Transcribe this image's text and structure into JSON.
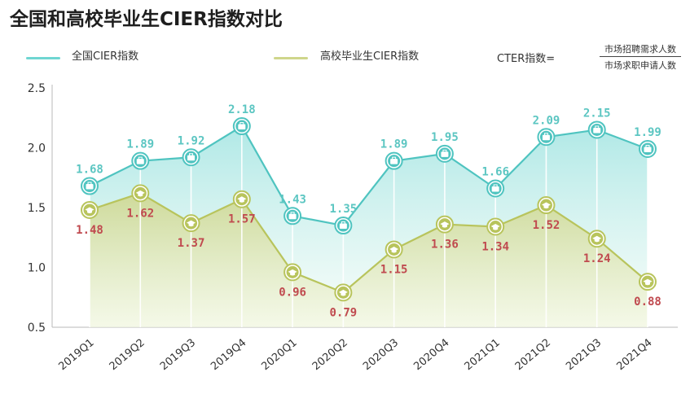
{
  "colors": {
    "national": "#6fd6d2",
    "national_dark": "#4fc4c0",
    "national_label": "#5cc6c2",
    "college": "#cfd68b",
    "college_dark": "#b8c45c",
    "college_label": "#c04a4f"
  },
  "icons": {
    "national_marker": "briefcase-icon",
    "college_marker": "graduation-cap-icon"
  },
  "title": "全国和高校毕业生CIER指数对比",
  "legend": {
    "national": "全国CIER指数",
    "college": "高校毕业生CIER指数"
  },
  "formula": {
    "lhs": "CTER指数=",
    "numerator": "市场招聘需求人数",
    "denominator": "市场求职申请人数"
  },
  "chart_data": {
    "type": "line",
    "title": "全国和高校毕业生CIER指数对比",
    "xlabel": "",
    "ylabel": "",
    "ylim": [
      0.5,
      2.5
    ],
    "yticks": [
      "0.5",
      "1.0",
      "1.5",
      "2.0",
      "2.5"
    ],
    "categories": [
      "2019Q1",
      "2019Q2",
      "2019Q3",
      "2019Q4",
      "2020Q1",
      "2020Q2",
      "2020Q3",
      "2020Q4",
      "2021Q1",
      "2021Q2",
      "2021Q3",
      "2021Q4"
    ],
    "series": [
      {
        "name": "全国CIER指数",
        "values": [
          1.68,
          1.89,
          1.92,
          2.18,
          1.43,
          1.35,
          1.89,
          1.95,
          1.66,
          2.09,
          2.15,
          1.99
        ],
        "labels": [
          "1.68",
          "1.89",
          "1.92",
          "2.18",
          "1.43",
          "1.35",
          "1.89",
          "1.95",
          "1.66",
          "2.09",
          "2.15",
          "1.99"
        ]
      },
      {
        "name": "高校毕业生CIER指数",
        "values": [
          1.48,
          1.62,
          1.37,
          1.57,
          0.96,
          0.79,
          1.15,
          1.36,
          1.34,
          1.52,
          1.24,
          0.88
        ],
        "labels": [
          "1.48",
          "1.62",
          "1.37",
          "1.57",
          "0.96",
          "0.79",
          "1.15",
          "1.36",
          "1.34",
          "1.52",
          "1.24",
          "0.88"
        ]
      }
    ]
  }
}
